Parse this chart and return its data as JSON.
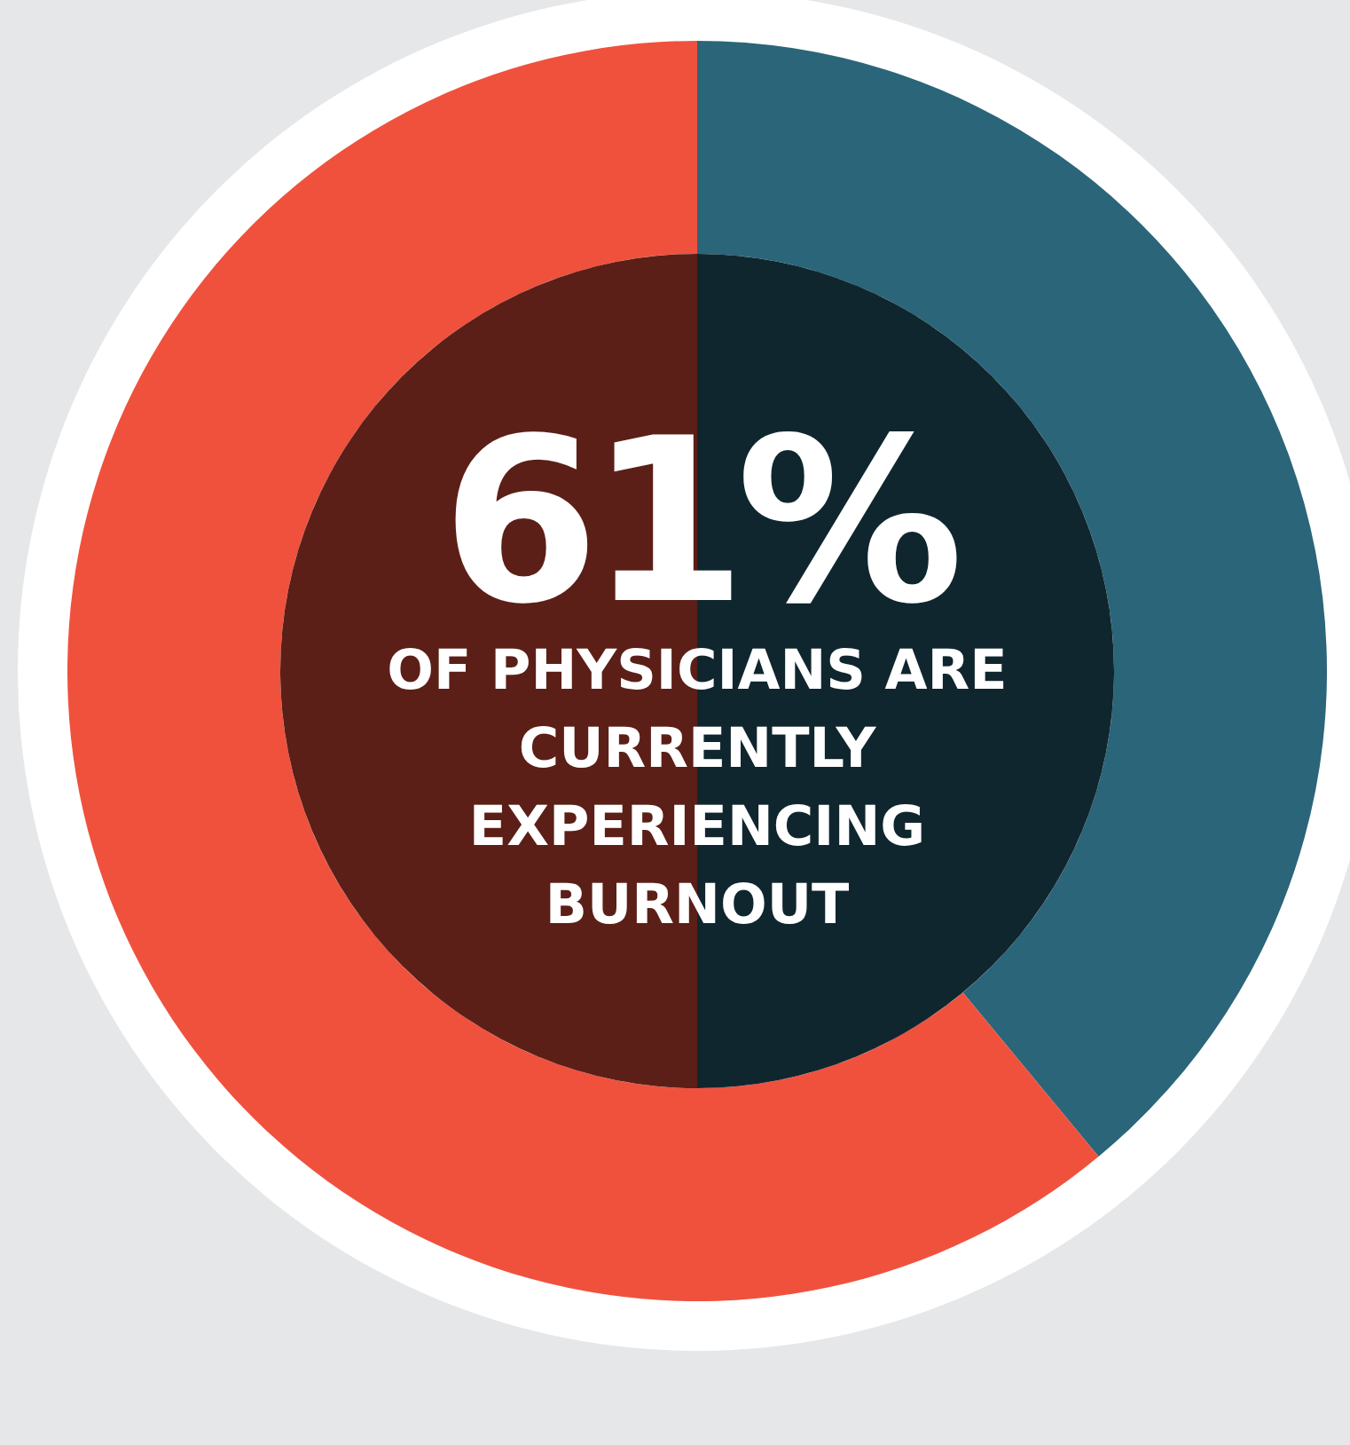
{
  "chart_data": {
    "type": "donut",
    "categories": [
      null,
      null
    ],
    "values": [
      39,
      61
    ],
    "colors": [
      "#2b6579",
      "#f0513d"
    ],
    "value_labels": [
      null,
      "61%"
    ],
    "annotations": [
      "OF PHYSICIANS ARE CURRENTLY EXPERIENCING BURNOUT"
    ]
  }
}
